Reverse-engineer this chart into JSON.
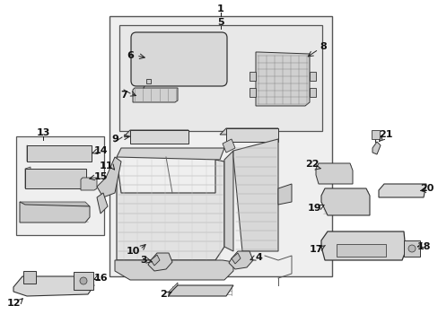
{
  "bg_color": "#ffffff",
  "box_fill": "#e8e8e8",
  "fig_width": 4.89,
  "fig_height": 3.6,
  "dpi": 100,
  "label_fs": 7.5,
  "lc": "#222222",
  "lw": 0.7
}
